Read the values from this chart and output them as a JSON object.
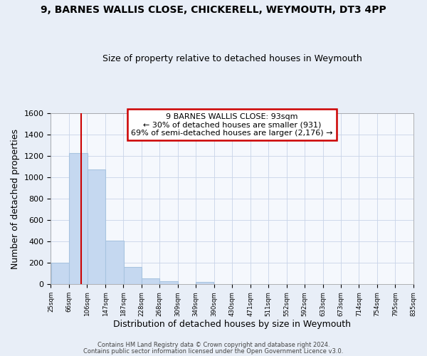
{
  "title": "9, BARNES WALLIS CLOSE, CHICKERELL, WEYMOUTH, DT3 4PP",
  "subtitle": "Size of property relative to detached houses in Weymouth",
  "xlabel": "Distribution of detached houses by size in Weymouth",
  "ylabel": "Number of detached properties",
  "bar_left_edges": [
    25,
    66,
    106,
    147,
    187,
    228,
    268,
    309,
    349,
    390,
    430,
    471,
    511,
    552,
    592,
    633,
    673,
    714,
    754,
    795
  ],
  "bar_heights": [
    205,
    1225,
    1075,
    410,
    160,
    55,
    30,
    0,
    20,
    0,
    0,
    0,
    0,
    0,
    0,
    0,
    0,
    0,
    0,
    0
  ],
  "bin_width": 41,
  "x_tick_labels": [
    "25sqm",
    "66sqm",
    "106sqm",
    "147sqm",
    "187sqm",
    "228sqm",
    "268sqm",
    "309sqm",
    "349sqm",
    "390sqm",
    "430sqm",
    "471sqm",
    "511sqm",
    "552sqm",
    "592sqm",
    "633sqm",
    "673sqm",
    "714sqm",
    "754sqm",
    "795sqm",
    "835sqm"
  ],
  "bar_color": "#c5d8f0",
  "bar_edge_color": "#a8c4e0",
  "property_line_x": 93,
  "property_line_color": "#cc0000",
  "ylim": [
    0,
    1600
  ],
  "xlim": [
    25,
    835
  ],
  "annotation_title": "9 BARNES WALLIS CLOSE: 93sqm",
  "annotation_line1": "← 30% of detached houses are smaller (931)",
  "annotation_line2": "69% of semi-detached houses are larger (2,176) →",
  "footer_line1": "Contains HM Land Registry data © Crown copyright and database right 2024.",
  "footer_line2": "Contains public sector information licensed under the Open Government Licence v3.0.",
  "background_color": "#e8eef7",
  "plot_background": "#f5f8fd"
}
